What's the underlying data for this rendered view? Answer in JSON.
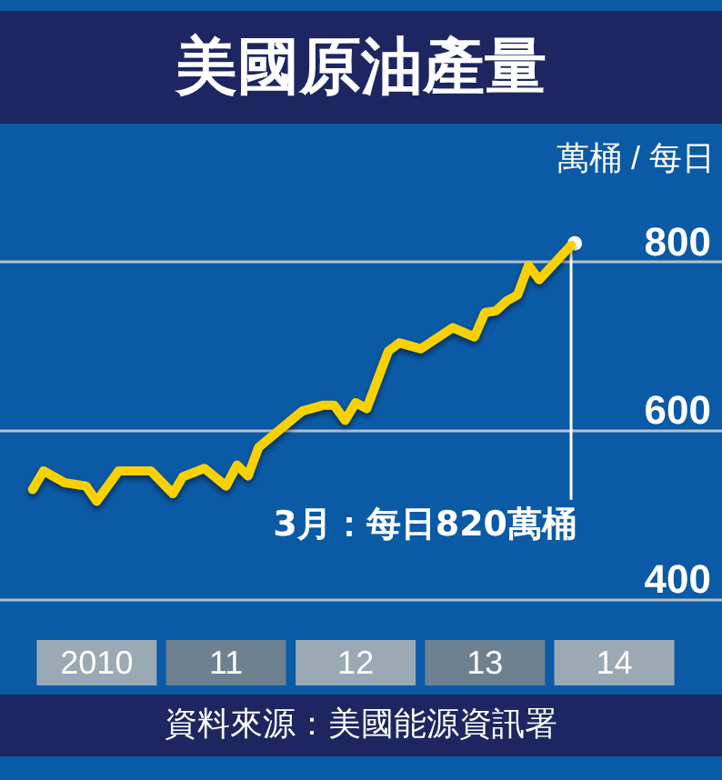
{
  "chart_data": {
    "type": "line",
    "title": "美國原油產量",
    "ylabel": "萬桶 / 每日",
    "x": [
      "2010-01",
      "2010-02",
      "2010-04",
      "2010-06",
      "2010-07",
      "2010-09",
      "2010-12",
      "2011-02",
      "2011-03",
      "2011-05",
      "2011-07",
      "2011-08",
      "2011-09",
      "2011-10",
      "2012-02",
      "2012-04",
      "2012-05",
      "2012-06",
      "2012-07",
      "2012-08",
      "2012-10",
      "2012-11",
      "2013-01",
      "2013-04",
      "2013-06",
      "2013-07",
      "2013-08",
      "2013-09",
      "2013-10",
      "2013-11",
      "2013-12",
      "2014-03"
    ],
    "series": [
      {
        "color": "#f7d200",
        "values": [
          530,
          552,
          538,
          534,
          516,
          552,
          552,
          525,
          545,
          555,
          534,
          559,
          546,
          580,
          623,
          630,
          630,
          612,
          633,
          626,
          694,
          704,
          697,
          722,
          711,
          740,
          742,
          754,
          761,
          796,
          779,
          820
        ]
      }
    ],
    "xlim": [
      "2009-10",
      "2015-05"
    ],
    "xticks": [
      {
        "value": "2010-07",
        "label": "2010"
      },
      {
        "value": "2011-07",
        "label": "11"
      },
      {
        "value": "2012-07",
        "label": "12"
      },
      {
        "value": "2013-07",
        "label": "13"
      },
      {
        "value": "2014-07",
        "label": "14"
      }
    ],
    "ylim": [
      185,
      1111
    ],
    "yticks": [
      400,
      600,
      800
    ],
    "grid": "y",
    "marker": "none",
    "line_style": "solid",
    "annotations": [
      {
        "text": "3月：每日820萬桶",
        "x": "2014-03",
        "y": 820
      },
      "資料來源：美國能源資訊署"
    ]
  }
}
